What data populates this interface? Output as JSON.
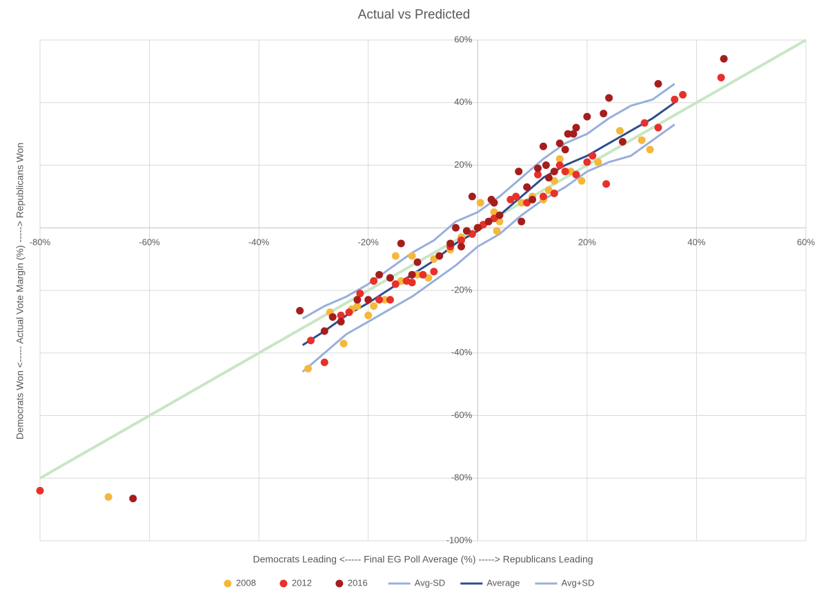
{
  "chart_data": {
    "type": "scatter",
    "title": "Actual vs Predicted",
    "x_label": "Democrats Leading <----- Final EG Poll Average (%) -----> Republicans Leading",
    "y_label": "Democrats Won <----- Actual Vote Margin (%) -----> Republicans Won",
    "xlim": [
      -80,
      60
    ],
    "ylim": [
      -100,
      60
    ],
    "xticks": [
      {
        "value": -80,
        "label": "-80%"
      },
      {
        "value": -60,
        "label": "-60%"
      },
      {
        "value": -40,
        "label": "-40%"
      },
      {
        "value": -20,
        "label": "-20%"
      },
      {
        "value": 20,
        "label": "20%"
      },
      {
        "value": 40,
        "label": "40%"
      },
      {
        "value": 60,
        "label": "60%"
      }
    ],
    "yticks": [
      {
        "value": -100,
        "label": "-100%"
      },
      {
        "value": -80,
        "label": "-80%"
      },
      {
        "value": -60,
        "label": "-60%"
      },
      {
        "value": -40,
        "label": "-40%"
      },
      {
        "value": -20,
        "label": "-20%"
      },
      {
        "value": 20,
        "label": "20%"
      },
      {
        "value": 40,
        "label": "40%"
      },
      {
        "value": 60,
        "label": "60%"
      }
    ],
    "grid": true,
    "reference_line": {
      "x": [
        -80,
        60
      ],
      "values": [
        -80,
        60
      ],
      "color": "#c8e6c4"
    },
    "series": [
      {
        "name": "2008",
        "kind": "scatter",
        "color": "#f4b83c",
        "x": [
          -67.5,
          -31,
          -27,
          -24.5,
          -23,
          -22,
          -20,
          -19,
          -17,
          -15,
          -14,
          -12,
          -11,
          -9,
          -8,
          -5,
          -3,
          0,
          0.5,
          3,
          3.5,
          4,
          8,
          10,
          12,
          13,
          14,
          15,
          17,
          19,
          22,
          26,
          30,
          31.5
        ],
        "values": [
          -86,
          -45,
          -27,
          -37,
          -26,
          -25,
          -28,
          -25,
          -23,
          -9,
          -17,
          -9,
          -15,
          -16,
          -10,
          -7,
          -3,
          0,
          8,
          5,
          -1,
          2,
          8,
          10,
          9,
          12,
          15,
          22,
          18,
          15,
          21,
          31,
          28,
          25
        ]
      },
      {
        "name": "2012",
        "kind": "scatter",
        "color": "#e8302a",
        "x": [
          -80,
          -30.5,
          -28,
          -25,
          -23.5,
          -21.5,
          -19,
          -18,
          -16,
          -15,
          -13,
          -12,
          -10,
          -8,
          -5,
          -3,
          -1,
          1,
          3,
          6,
          7,
          9,
          11,
          12,
          14,
          15,
          16,
          18,
          20,
          21,
          23.5,
          30.5,
          33,
          36,
          37.5,
          44.5
        ],
        "values": [
          -84,
          -36,
          -43,
          -28,
          -27,
          -21,
          -17,
          -23,
          -23,
          -18,
          -17,
          -17.5,
          -15,
          -14,
          -6,
          -4,
          -2,
          1,
          3,
          9,
          10,
          8,
          17,
          10,
          11,
          20,
          18,
          17,
          21,
          23,
          14,
          33.5,
          32,
          41,
          42.5,
          48
        ]
      },
      {
        "name": "2016",
        "kind": "scatter",
        "color": "#a51d1d",
        "x": [
          -63,
          -32.5,
          -28,
          -26.5,
          -25,
          -22,
          -20,
          -18,
          -16,
          -14,
          -12,
          -11,
          -7,
          -5,
          -4,
          -3,
          -2,
          -1,
          0,
          2,
          2.5,
          3,
          4,
          7.5,
          8,
          9,
          10,
          11,
          12,
          12.5,
          13,
          14,
          15,
          16,
          16.5,
          17.5,
          18,
          20,
          23,
          24,
          26.5,
          33,
          45
        ],
        "values": [
          -86.5,
          -26.5,
          -33,
          -28.5,
          -30,
          -23,
          -23,
          -15,
          -16,
          -5,
          -15,
          -11,
          -9,
          -5,
          0,
          -6,
          -1,
          10,
          0,
          2,
          9,
          8,
          4,
          18,
          2,
          13,
          9,
          19,
          26,
          20,
          16,
          18,
          27,
          25,
          30,
          30,
          32,
          35.5,
          36.5,
          41.5,
          27.5,
          46,
          54
        ]
      },
      {
        "name": "Avg-SD",
        "kind": "line",
        "color": "#98afdc",
        "x": [
          -32,
          -28,
          -24,
          -20,
          -16,
          -12,
          -8,
          -4,
          0,
          4,
          8,
          12,
          16,
          20,
          24,
          28,
          32,
          36
        ],
        "values": [
          -46,
          -40,
          -34,
          -30,
          -26,
          -22,
          -17,
          -12,
          -6,
          -2,
          4,
          9,
          13,
          18,
          21,
          23,
          28,
          33
        ]
      },
      {
        "name": "Average",
        "kind": "line",
        "color": "#2f4d8c",
        "x": [
          -32,
          -28,
          -24,
          -20,
          -16,
          -12,
          -8,
          -4,
          0,
          4,
          8,
          12,
          16,
          20,
          24,
          28,
          32,
          36
        ],
        "values": [
          -37.5,
          -33,
          -28,
          -24,
          -19.5,
          -15,
          -10.5,
          -5,
          -1,
          4,
          10,
          16,
          20,
          23,
          27,
          31,
          35,
          40
        ]
      },
      {
        "name": "Avg+SD",
        "kind": "line",
        "color": "#98afdc",
        "x": [
          -32,
          -28,
          -24,
          -20,
          -16,
          -12,
          -8,
          -4,
          0,
          4,
          8,
          12,
          16,
          20,
          24,
          28,
          32,
          36
        ],
        "values": [
          -29,
          -25,
          -22,
          -18,
          -13,
          -8,
          -4,
          2,
          5,
          10,
          16,
          22,
          27,
          30,
          35,
          39,
          41,
          46
        ]
      }
    ]
  }
}
